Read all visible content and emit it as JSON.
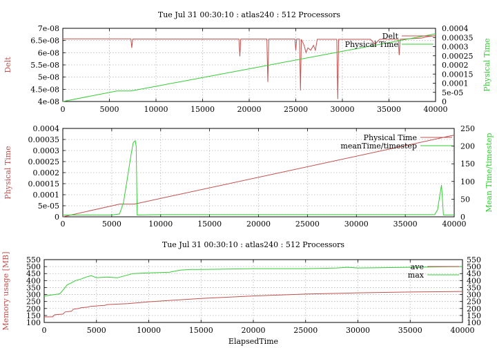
{
  "chart_data": [
    {
      "type": "line",
      "title": "Tue Jul 31 00:30:10 : atlas240 : 512 Processors",
      "xlim": [
        0,
        40000
      ],
      "xticks": [
        0,
        5000,
        10000,
        15000,
        20000,
        25000,
        30000,
        35000,
        40000
      ],
      "y1label": "Delt",
      "y1lim": [
        4e-08,
        7e-08
      ],
      "y1ticks": [
        "4e-08",
        "4.5e-08",
        "5e-08",
        "5.5e-08",
        "6e-08",
        "6.5e-08",
        "7e-08"
      ],
      "y2label": "Physical Time",
      "y2lim": [
        0,
        0.0004
      ],
      "y2ticks": [
        "0",
        "5e-05",
        "0.0001",
        "0.00015",
        "0.0002",
        "0.00025",
        "0.0003",
        "0.00035",
        "0.0004"
      ],
      "grid": true,
      "legend": "top-right",
      "series": [
        {
          "name": "Delt",
          "axis": "y1",
          "color": "#c0504d",
          "x": [
            0,
            7300,
            7400,
            7500,
            18900,
            19000,
            19100,
            21900,
            22000,
            22100,
            24900,
            25000,
            25100,
            25400,
            25500,
            25600,
            25900,
            26100,
            26300,
            26600,
            26900,
            27100,
            27300,
            29400,
            29500,
            29600,
            33000,
            33500,
            34000,
            36000,
            36100,
            36200,
            38500,
            39000,
            40000
          ],
          "values": [
            6.57e-08,
            6.57e-08,
            6.2e-08,
            6.56e-08,
            6.56e-08,
            5.85e-08,
            6.56e-08,
            6.56e-08,
            4.8e-08,
            6.56e-08,
            6.56e-08,
            6.1e-08,
            6.56e-08,
            6.56e-08,
            4.45e-08,
            6.55e-08,
            6.3e-08,
            6e-08,
            6.2e-08,
            6.1e-08,
            6.3e-08,
            6.1e-08,
            6.55e-08,
            6.55e-08,
            4.1e-08,
            6.55e-08,
            6.55e-08,
            6.35e-08,
            6.55e-08,
            6.55e-08,
            5.9e-08,
            6.55e-08,
            6.6e-08,
            6.65e-08,
            6.7e-08
          ]
        },
        {
          "name": "Physical Time",
          "axis": "y2",
          "color": "#33cc33",
          "x": [
            0,
            5800,
            7300,
            40000
          ],
          "values": [
            0,
            5.75e-05,
            5.75e-05,
            0.00037
          ]
        }
      ]
    },
    {
      "type": "line",
      "title": "",
      "xlim": [
        0,
        40000
      ],
      "xticks": [
        0,
        5000,
        10000,
        15000,
        20000,
        25000,
        30000,
        35000,
        40000
      ],
      "y1label": "Physical Time",
      "y1lim": [
        0,
        0.0004
      ],
      "y1ticks": [
        "0",
        "5e-05",
        "0.0001",
        "0.00015",
        "0.0002",
        "0.00025",
        "0.0003",
        "0.00035",
        "0.0004"
      ],
      "y2label": "Mean Time/timestep",
      "y2lim": [
        0,
        250
      ],
      "y2ticks": [
        "0",
        "50",
        "100",
        "150",
        "200",
        "250"
      ],
      "grid": true,
      "legend": "top-right",
      "series": [
        {
          "name": "Physical Time",
          "axis": "y1",
          "color": "#c0504d",
          "x": [
            0,
            5800,
            7300,
            40000
          ],
          "values": [
            0,
            5.75e-05,
            5.75e-05,
            0.00037
          ]
        },
        {
          "name": "meanTime/timestep",
          "axis": "y2",
          "color": "#33cc33",
          "x": [
            0,
            5000,
            5800,
            6200,
            6600,
            7000,
            7200,
            7400,
            7500,
            7600,
            10000,
            20000,
            30000,
            38000,
            38300,
            38500,
            38700,
            38900,
            40000
          ],
          "values": [
            5,
            5,
            8,
            40,
            110,
            180,
            210,
            215,
            200,
            5,
            6,
            6,
            6,
            6,
            20,
            55,
            90,
            5,
            5
          ]
        }
      ]
    },
    {
      "type": "line",
      "title": "Tue Jul 31 00:30:10 : atlas240 : 512 Processors",
      "xlabel": "ElapsedTime",
      "xlim": [
        0,
        40000
      ],
      "xticks": [
        0,
        5000,
        10000,
        15000,
        20000,
        25000,
        30000,
        35000,
        40000
      ],
      "y1label": "Memory usage [MB]",
      "y1lim": [
        100,
        550
      ],
      "y1ticks": [
        "100",
        "150",
        "200",
        "250",
        "300",
        "350",
        "400",
        "450",
        "500",
        "550"
      ],
      "y2label": "",
      "y2lim": [
        100,
        550
      ],
      "y2ticks": [
        "100",
        "150",
        "200",
        "250",
        "300",
        "350",
        "400",
        "450",
        "500",
        "550"
      ],
      "grid": true,
      "legend": "top-right",
      "series": [
        {
          "name": "ave",
          "axis": "y1",
          "color": "#c0504d",
          "x": [
            0,
            800,
            1000,
            1800,
            2000,
            2600,
            2800,
            3300,
            3500,
            4200,
            4400,
            5000,
            5200,
            5800,
            6000,
            8000,
            10000,
            15000,
            20000,
            25000,
            30000,
            35000,
            40000
          ],
          "values": [
            140,
            140,
            155,
            160,
            175,
            180,
            195,
            200,
            205,
            210,
            215,
            218,
            220,
            222,
            228,
            235,
            248,
            272,
            290,
            303,
            312,
            318,
            322
          ]
        },
        {
          "name": "max",
          "axis": "y1",
          "color": "#33cc33",
          "x": [
            0,
            500,
            1000,
            1500,
            2000,
            2200,
            2500,
            3000,
            3500,
            4000,
            4500,
            5000,
            6000,
            7000,
            8000,
            8500,
            10000,
            12000,
            13000,
            14000,
            15000,
            20000,
            25000,
            28000,
            29000,
            30000,
            35000,
            40000
          ],
          "values": [
            290,
            295,
            300,
            305,
            350,
            370,
            380,
            400,
            410,
            425,
            435,
            420,
            425,
            420,
            440,
            450,
            455,
            460,
            475,
            480,
            480,
            485,
            485,
            490,
            495,
            490,
            495,
            500
          ]
        }
      ]
    }
  ]
}
